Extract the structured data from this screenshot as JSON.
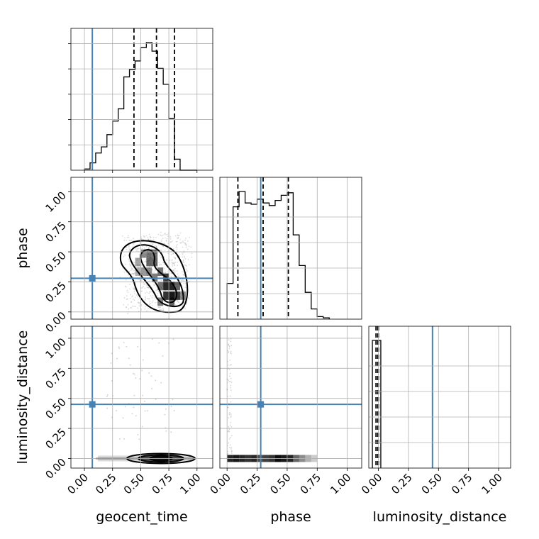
{
  "chart_data": {
    "type": "corner",
    "parameters": [
      "geocent_time",
      "phase",
      "luminosity_distance"
    ],
    "xlabels": [
      "geocent_time",
      "phase",
      "luminosity_distance"
    ],
    "ylabels": [
      "",
      "phase",
      "luminosity_distance"
    ],
    "tick_labels": [
      "0.00",
      "0.25",
      "0.50",
      "0.75",
      "1.00"
    ],
    "truths": {
      "geocent_time": 0.07,
      "phase": 0.28,
      "luminosity_distance": 0.45
    },
    "truth_color": "#4682b4",
    "grid": true,
    "marginals": [
      {
        "parameter": "geocent_time",
        "range": [
          -0.12,
          1.14
        ],
        "bin_edges": [
          0.0,
          0.05,
          0.1,
          0.15,
          0.2,
          0.25,
          0.3,
          0.35,
          0.4,
          0.45,
          0.5,
          0.55,
          0.6,
          0.65,
          0.7,
          0.75,
          0.8,
          0.85,
          0.9,
          0.95,
          1.0
        ],
        "counts": [
          1,
          6,
          14,
          19,
          29,
          40,
          50,
          76,
          82,
          89,
          100,
          104,
          97,
          83,
          70,
          42,
          9,
          0,
          0,
          0
        ],
        "quantiles": [
          0.44,
          0.64,
          0.8
        ]
      },
      {
        "parameter": "phase",
        "range": [
          -0.06,
          1.12
        ],
        "bin_edges": [
          0.0,
          0.05,
          0.1,
          0.15,
          0.2,
          0.25,
          0.3,
          0.35,
          0.4,
          0.45,
          0.5,
          0.55,
          0.6,
          0.65,
          0.7,
          0.75,
          0.8,
          0.85
        ],
        "counts": [
          28,
          88,
          100,
          91,
          90,
          94,
          91,
          89,
          93,
          97,
          99,
          66,
          42,
          21,
          8,
          2,
          1
        ],
        "quantiles": [
          0.09,
          0.3,
          0.51
        ]
      },
      {
        "parameter": "luminosity_distance",
        "range": [
          -0.08,
          1.1
        ],
        "bin_edges": [
          -0.05,
          0.0,
          0.02
        ],
        "counts": [
          100,
          100
        ],
        "quantiles": [
          -0.02,
          -0.005,
          0.0
        ]
      }
    ],
    "joint": [
      {
        "x": "geocent_time",
        "y": "phase",
        "density_peak": [
          0.72,
          0.12
        ],
        "contour_levels": 3
      },
      {
        "x": "geocent_time",
        "y": "luminosity_distance",
        "density_peak": [
          0.68,
          0.0
        ],
        "sparse_points_near": 1.0
      },
      {
        "x": "phase",
        "y": "luminosity_distance",
        "density_peak": [
          0.25,
          0.0
        ],
        "x_extent": [
          0.0,
          0.75
        ]
      }
    ]
  }
}
